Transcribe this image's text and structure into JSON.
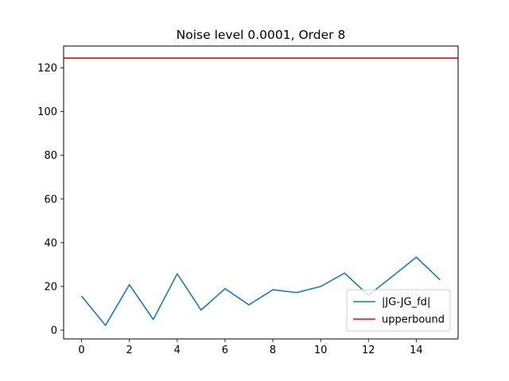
{
  "chart_data": {
    "type": "line",
    "title": "Noise level 0.0001, Order 8",
    "xlabel": "",
    "ylabel": "",
    "xlim": [
      -0.75,
      15.75
    ],
    "ylim": [
      -4,
      130
    ],
    "xticks": [
      0,
      2,
      4,
      6,
      8,
      10,
      12,
      14
    ],
    "yticks": [
      0,
      20,
      40,
      60,
      80,
      100,
      120
    ],
    "grid": false,
    "legend_position": "lower right",
    "series": [
      {
        "name": "|JG-JG_fd|",
        "color": "#1f77b4",
        "kind": "line",
        "x": [
          0,
          1,
          2,
          3,
          4,
          5,
          6,
          7,
          8,
          9,
          10,
          11,
          12,
          13,
          14,
          15
        ],
        "y": [
          15.6,
          2.2,
          20.8,
          4.9,
          25.8,
          9.2,
          19.0,
          11.6,
          18.5,
          17.2,
          20.0,
          26.1,
          16.0,
          24.6,
          33.4,
          23.0
        ]
      },
      {
        "name": "upperbound",
        "color": "#ff0000",
        "kind": "hline",
        "y": 124.5
      }
    ]
  }
}
